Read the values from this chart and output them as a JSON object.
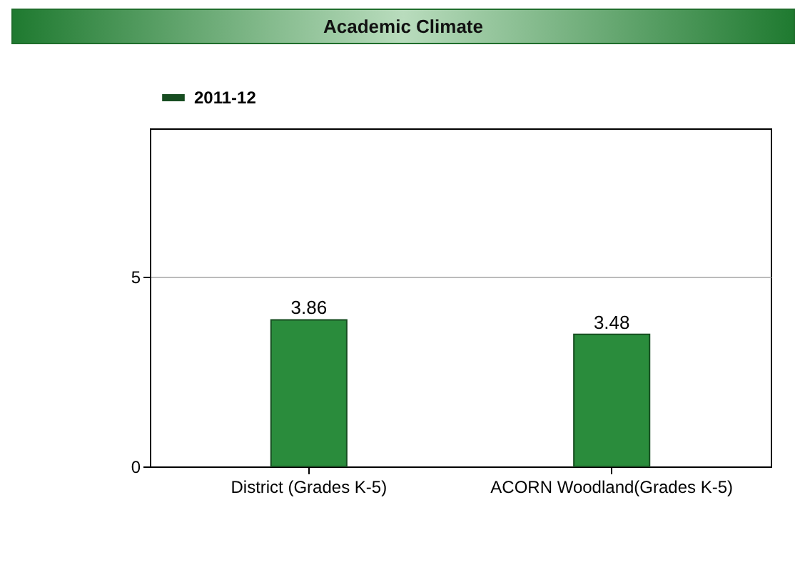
{
  "chart_data": {
    "type": "bar",
    "title": "Academic Climate",
    "categories": [
      "District (Grades K-5)",
      "ACORN Woodland(Grades K-5)"
    ],
    "series": [
      {
        "name": "2011-12",
        "color": "#2a8c3c",
        "values": [
          3.86,
          3.48
        ]
      }
    ],
    "ylim": [
      0,
      8.9
    ],
    "yticks": [
      0,
      5
    ],
    "grid": "y",
    "legend": "top left",
    "data_labels": true
  }
}
